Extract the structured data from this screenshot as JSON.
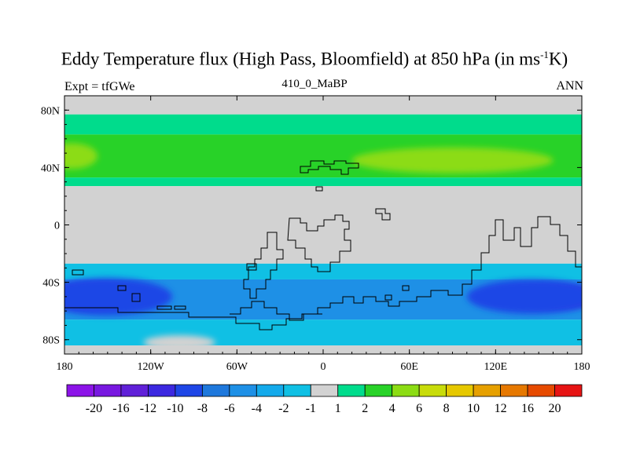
{
  "title": {
    "main": "Eddy Temperature flux (High Pass, Bloomfield) at 850 hPa (in ms",
    "sup": "-1",
    "end": "K)"
  },
  "subtitle_left": "Expt = tfGWe",
  "subtitle_center": "410_0_MaBP",
  "subtitle_right": "ANN",
  "chart_data": {
    "type": "heatmap",
    "xlim": [
      -180,
      180
    ],
    "ylim": [
      -90,
      90
    ],
    "x_ticks": [
      {
        "value": -180,
        "label": "180"
      },
      {
        "value": -120,
        "label": "120W"
      },
      {
        "value": -60,
        "label": "60W"
      },
      {
        "value": 0,
        "label": "0"
      },
      {
        "value": 60,
        "label": "60E"
      },
      {
        "value": 120,
        "label": "120E"
      },
      {
        "value": 180,
        "label": "180"
      }
    ],
    "y_ticks": [
      {
        "value": 80,
        "label": "80N"
      },
      {
        "value": 40,
        "label": "40N"
      },
      {
        "value": 0,
        "label": "0"
      },
      {
        "value": -40,
        "label": "40S"
      },
      {
        "value": -80,
        "label": "80S"
      }
    ],
    "colorbar": {
      "labels": [
        "-20",
        "-16",
        "-12",
        "-10",
        "-8",
        "-6",
        "-4",
        "-2",
        "-1",
        "1",
        "2",
        "4",
        "6",
        "8",
        "10",
        "12",
        "16",
        "20"
      ],
      "colors": [
        "#8c14e8",
        "#7818e0",
        "#6020d8",
        "#3c28e0",
        "#1e46e6",
        "#1e78dc",
        "#1e90e6",
        "#14aaeb",
        "#10c0e4",
        "#d2d2d2",
        "#00dc8c",
        "#28d228",
        "#8cdc14",
        "#c8dc0a",
        "#e6c800",
        "#e6a000",
        "#e67800",
        "#e64a00",
        "#e61414"
      ]
    },
    "bands": [
      {
        "lat_north": 90,
        "lat_south": 77,
        "value": "0",
        "color": "#d2d2d2"
      },
      {
        "lat_north": 77,
        "lat_south": 63,
        "value": "1 to 2",
        "color": "#00dc8c"
      },
      {
        "lat_north": 63,
        "lat_south": 33,
        "value": "2 to 4",
        "color": "#28d228"
      },
      {
        "lat_north": 33,
        "lat_south": 27,
        "value": "1 to 2",
        "color": "#00dc8c"
      },
      {
        "lat_north": 27,
        "lat_south": -27,
        "value": "0",
        "color": "#d2d2d2"
      },
      {
        "lat_north": -27,
        "lat_south": -38,
        "value": "-2 to -1",
        "color": "#10c0e4"
      },
      {
        "lat_north": -38,
        "lat_south": -66,
        "value": "-6 to -2",
        "color": "#1e90e6"
      },
      {
        "lat_north": -66,
        "lat_south": -84,
        "value": "-4 to -1",
        "color": "#10c0e4"
      },
      {
        "lat_north": -84,
        "lat_south": -90,
        "value": "0",
        "color": "#d2d2d2"
      }
    ],
    "patches": [
      {
        "name": "nh-strong-atlantic",
        "lon": -175,
        "lat": 48,
        "rlon": 18,
        "rlat": 9,
        "color": "#8cdc14"
      },
      {
        "name": "nh-strong-pacific",
        "lon": 90,
        "lat": 45,
        "rlon": 70,
        "rlat": 9,
        "color": "#8cdc14"
      },
      {
        "name": "sh-core-west",
        "lon": -165,
        "lat": -50,
        "rlon": 30,
        "rlat": 9,
        "color": "#3c28e0"
      },
      {
        "name": "sh-core-east",
        "lon": 165,
        "lat": -50,
        "rlon": 28,
        "rlat": 8,
        "color": "#3c28e0"
      },
      {
        "name": "sh-mid-west",
        "lon": -150,
        "lat": -50,
        "rlon": 45,
        "rlat": 13,
        "color": "#1e46e6"
      },
      {
        "name": "sh-mid-east",
        "lon": 145,
        "lat": -50,
        "rlon": 45,
        "rlat": 12,
        "color": "#1e46e6"
      },
      {
        "name": "sh-weak-south",
        "lon": -100,
        "lat": -82,
        "rlon": 25,
        "rlat": 5,
        "color": "#d2d2d2"
      }
    ]
  }
}
